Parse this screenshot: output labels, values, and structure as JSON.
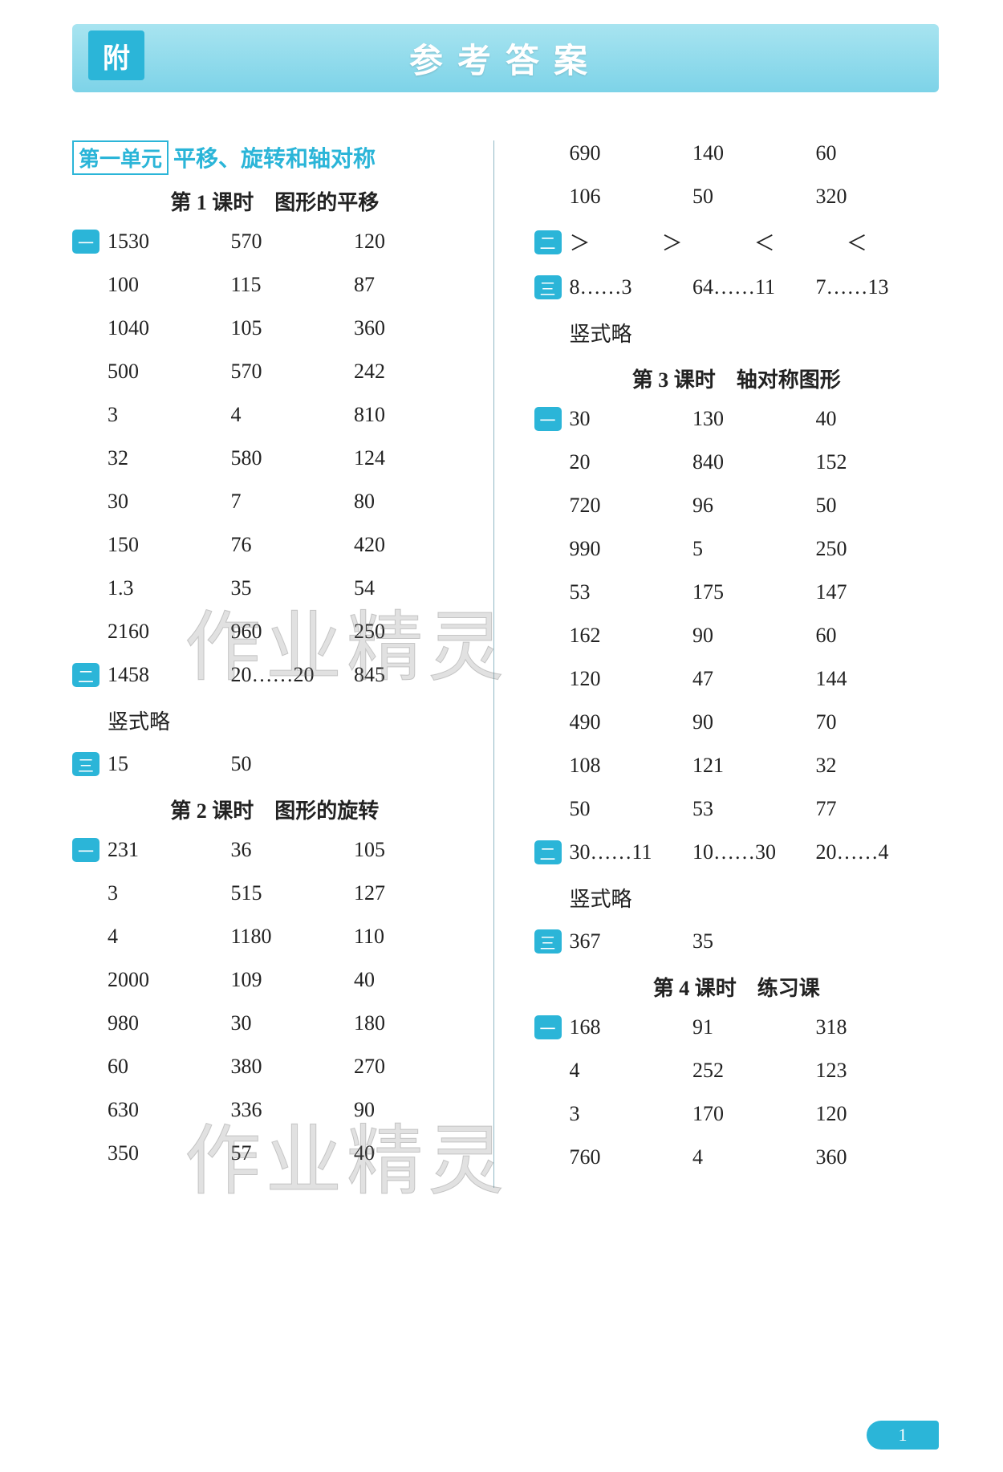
{
  "banner": {
    "badge": "附",
    "title": "参考答案"
  },
  "unit": {
    "box": "第一单元",
    "rest": "平移、旋转和轴对称"
  },
  "lesson1": "第 1 课时　图形的平移",
  "lesson2": "第 2 课时　图形的旋转",
  "lesson3": "第 3 课时　轴对称图形",
  "lesson4": "第 4 课时　练习课",
  "badge1": "一",
  "badge2": "二",
  "badge3": "三",
  "L1q1": [
    [
      "1530",
      "570",
      "120"
    ],
    [
      "100",
      "115",
      "87"
    ],
    [
      "1040",
      "105",
      "360"
    ],
    [
      "500",
      "570",
      "242"
    ],
    [
      "3",
      "4",
      "810"
    ],
    [
      "32",
      "580",
      "124"
    ],
    [
      "30",
      "7",
      "80"
    ],
    [
      "150",
      "76",
      "420"
    ],
    [
      "1.3",
      "35",
      "54"
    ],
    [
      "2160",
      "960",
      "250"
    ]
  ],
  "L1q2": [
    "1458",
    "20……20",
    "845"
  ],
  "L1q2_note": "竖式略",
  "L1q3": [
    "15",
    "50"
  ],
  "L2q1": [
    [
      "231",
      "36",
      "105"
    ],
    [
      "3",
      "515",
      "127"
    ],
    [
      "4",
      "1180",
      "110"
    ],
    [
      "2000",
      "109",
      "40"
    ],
    [
      "980",
      "30",
      "180"
    ],
    [
      "60",
      "380",
      "270"
    ],
    [
      "630",
      "336",
      "90"
    ],
    [
      "350",
      "57",
      "40"
    ]
  ],
  "R_top": [
    [
      "690",
      "140",
      "60"
    ],
    [
      "106",
      "50",
      "320"
    ]
  ],
  "Rq2": [
    "＞",
    "＞",
    "＜",
    "＜"
  ],
  "Rq3": [
    "8……3",
    "64……11",
    "7……13"
  ],
  "Rq3_note": "竖式略",
  "L3q1": [
    [
      "30",
      "130",
      "40"
    ],
    [
      "20",
      "840",
      "152"
    ],
    [
      "720",
      "96",
      "50"
    ],
    [
      "990",
      "5",
      "250"
    ],
    [
      "53",
      "175",
      "147"
    ],
    [
      "162",
      "90",
      "60"
    ],
    [
      "120",
      "47",
      "144"
    ],
    [
      "490",
      "90",
      "70"
    ],
    [
      "108",
      "121",
      "32"
    ],
    [
      "50",
      "53",
      "77"
    ]
  ],
  "L3q2": [
    "30……11",
    "10……30",
    "20……4"
  ],
  "L3q2_note": "竖式略",
  "L3q3": [
    "367",
    "35"
  ],
  "L4q1": [
    [
      "168",
      "91",
      "318"
    ],
    [
      "4",
      "252",
      "123"
    ],
    [
      "3",
      "170",
      "120"
    ],
    [
      "760",
      "4",
      "360"
    ]
  ],
  "pagenum": "1",
  "watermark": "作业精灵"
}
